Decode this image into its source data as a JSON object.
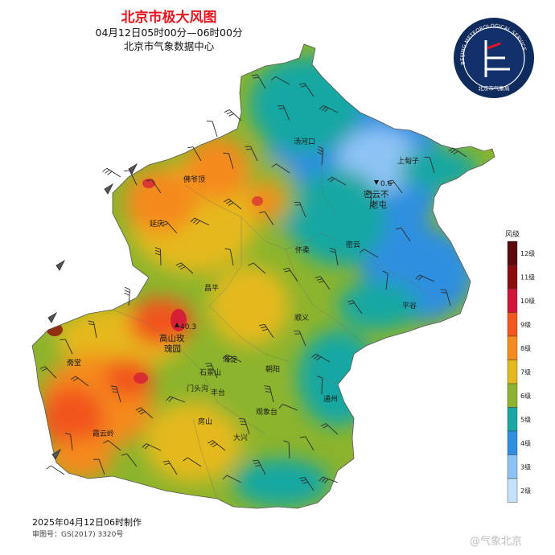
{
  "header": {
    "title": "北京市极大风图",
    "time_range": "04月12日05时00分—06时00分",
    "issuer": "北京市气象数据中心"
  },
  "logo": {
    "ring_text": "BEIJING METEOROLOGICAL SERVICE",
    "center_text": "北京市气象局"
  },
  "map": {
    "district_labels": [
      "汤河口",
      "上甸子",
      "密云不老屯",
      "佛爷顶",
      "延庆",
      "密云",
      "怀柔",
      "昌平",
      "平谷",
      "顺义",
      "高山玫瑰园",
      "海淀",
      "朝阳",
      "斋堂",
      "石景山",
      "门头沟",
      "丰台",
      "通州",
      "观象台",
      "房山",
      "大兴",
      "霞云岭"
    ],
    "station_min": {
      "value": "0.6",
      "name": "密云不老屯"
    },
    "station_max": {
      "value": "40.3",
      "name": "高山玫瑰园"
    }
  },
  "legend": {
    "title": "风级",
    "levels": [
      {
        "label": "12级",
        "color": "#5a0a0a"
      },
      {
        "label": "11级",
        "color": "#8c0d0d"
      },
      {
        "label": "10级",
        "color": "#d3143a"
      },
      {
        "label": "9级",
        "color": "#f2551e"
      },
      {
        "label": "8级",
        "color": "#f58a1f"
      },
      {
        "label": "7级",
        "color": "#e5b91e"
      },
      {
        "label": "6级",
        "color": "#8cb42d"
      },
      {
        "label": "5级",
        "color": "#18a7a2"
      },
      {
        "label": "4级",
        "color": "#2f8fe0"
      },
      {
        "label": "3级",
        "color": "#8ec4f5"
      },
      {
        "label": "2级",
        "color": "#c4e2fb"
      }
    ]
  },
  "footer": {
    "produced": "2025年04月12日06时制作",
    "approval": "审图号：GS(2017) 3320号",
    "watermark": "@气象北京"
  }
}
